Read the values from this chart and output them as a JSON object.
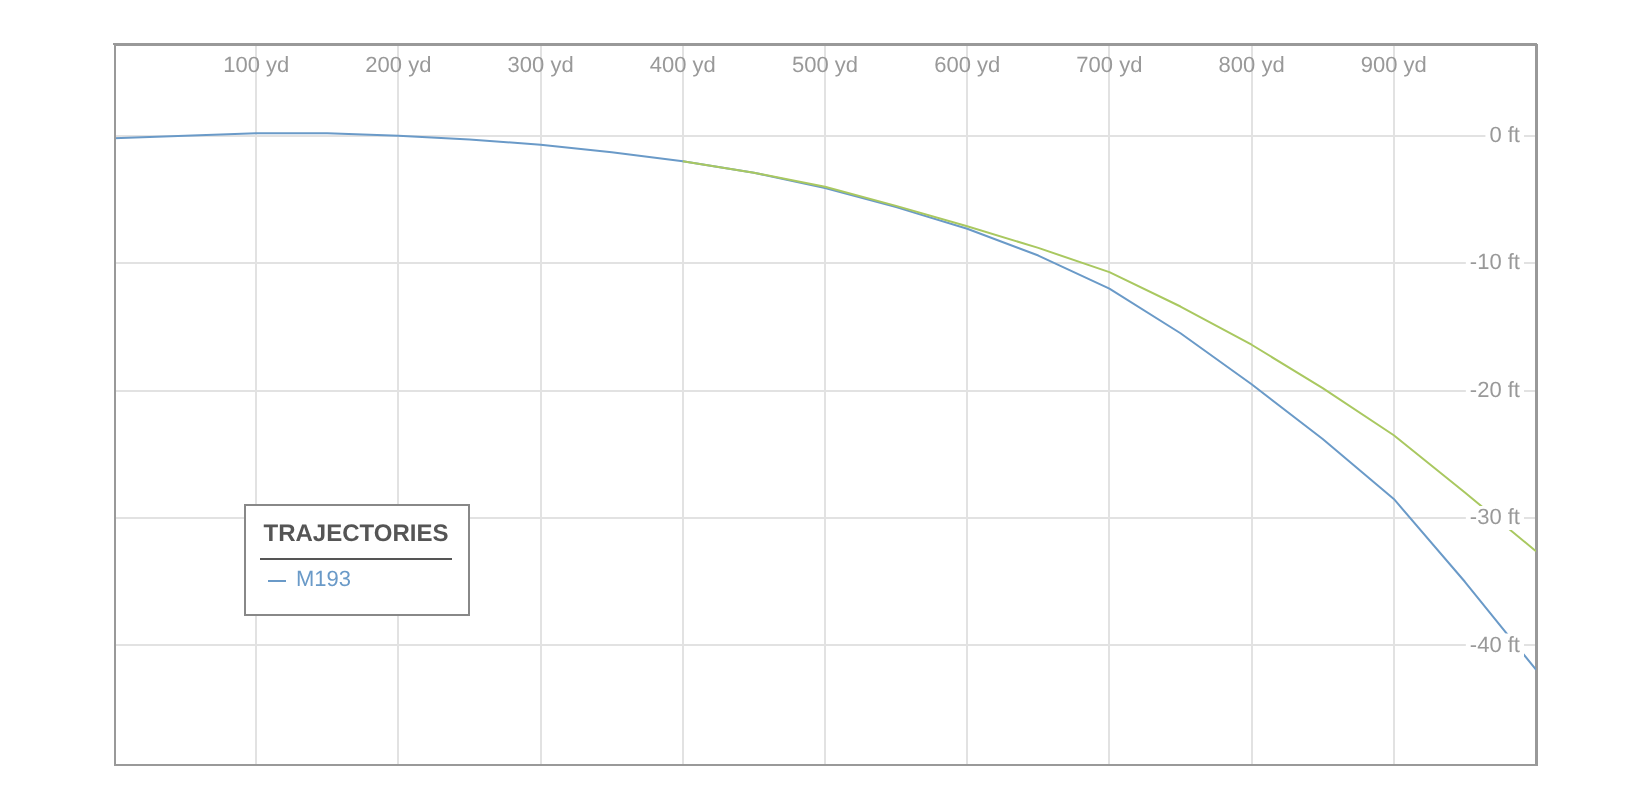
{
  "chart_data": {
    "type": "line",
    "legend_title": "TRAJECTORIES",
    "legend": "bottom left",
    "grid": true,
    "marker": "none",
    "line_style": "solid",
    "xlim": [
      0,
      1000
    ],
    "ylim": [
      -49.3,
      7.2
    ],
    "xticks": [
      {
        "value": 100,
        "label": "100 yd"
      },
      {
        "value": 200,
        "label": "200 yd"
      },
      {
        "value": 300,
        "label": "300 yd"
      },
      {
        "value": 400,
        "label": "400 yd"
      },
      {
        "value": 500,
        "label": "500 yd"
      },
      {
        "value": 600,
        "label": "600 yd"
      },
      {
        "value": 700,
        "label": "700 yd"
      },
      {
        "value": 800,
        "label": "800 yd"
      },
      {
        "value": 900,
        "label": "900 yd"
      }
    ],
    "yticks": [
      {
        "value": 0,
        "label": "0 ft"
      },
      {
        "value": -10,
        "label": "-10 ft"
      },
      {
        "value": -20,
        "label": "-20 ft"
      },
      {
        "value": -30,
        "label": "-30 ft"
      },
      {
        "value": -40,
        "label": "-40 ft"
      }
    ],
    "x": [
      0,
      50,
      100,
      150,
      200,
      250,
      300,
      350,
      400,
      450,
      500,
      550,
      600,
      650,
      700,
      750,
      800,
      850,
      900,
      950,
      1000
    ],
    "series": [
      {
        "color": "#a9c860",
        "values": [
          null,
          null,
          null,
          null,
          null,
          null,
          null,
          null,
          -2.0,
          -2.9,
          -4.0,
          -5.5,
          -7.1,
          -8.8,
          -10.7,
          -13.4,
          -16.4,
          -19.8,
          -23.5,
          -28.0,
          -32.6
        ]
      },
      {
        "name": "M193",
        "color": "#6a9ac8",
        "values": [
          -0.2,
          0,
          0.2,
          0.2,
          0,
          -0.3,
          -0.7,
          -1.3,
          -2.0,
          -2.9,
          -4.1,
          -5.6,
          -7.3,
          -9.4,
          -12.0,
          -15.5,
          -19.5,
          -23.8,
          -28.5,
          -35.0,
          -41.9
        ]
      }
    ]
  }
}
